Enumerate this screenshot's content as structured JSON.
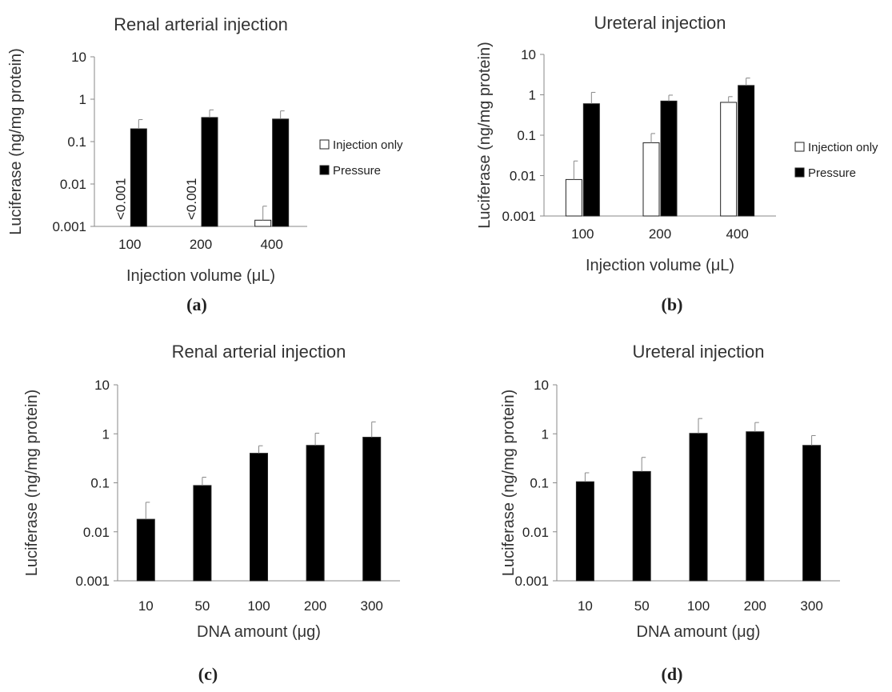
{
  "chart_data": [
    {
      "id": "a",
      "type": "bar",
      "title": "Renal arterial injection",
      "xlabel": "Injection volume (μL)",
      "ylabel": "Luciferase (ng/mg protein)",
      "yscale": "log",
      "ylim": [
        0.001,
        10
      ],
      "yticks": [
        "0.001",
        "0.01",
        "0.1",
        "1",
        "10"
      ],
      "categories": [
        "100",
        "200",
        "400"
      ],
      "series": [
        {
          "name": "Injection only",
          "color": "#ffffff",
          "values": [
            null,
            null,
            0.0014
          ],
          "errors": [
            null,
            null,
            0.003
          ],
          "notes": [
            "<0.001",
            "<0.001",
            ""
          ]
        },
        {
          "name": "Pressure",
          "color": "#000000",
          "values": [
            0.2,
            0.37,
            0.34
          ],
          "errors": [
            0.33,
            0.56,
            0.53
          ]
        }
      ],
      "legend": "right",
      "caption": "(a)"
    },
    {
      "id": "b",
      "type": "bar",
      "title": "Ureteral injection",
      "xlabel": "Injection volume (μL)",
      "ylabel": "Luciferase (ng/mg protein)",
      "yscale": "log",
      "ylim": [
        0.001,
        10
      ],
      "yticks": [
        "0.001",
        "0.01",
        "0.1",
        "1",
        "10"
      ],
      "categories": [
        "100",
        "200",
        "400"
      ],
      "series": [
        {
          "name": "Injection only",
          "color": "#ffffff",
          "values": [
            0.008,
            0.065,
            0.65
          ],
          "errors": [
            0.023,
            0.11,
            0.9
          ]
        },
        {
          "name": "Pressure",
          "color": "#000000",
          "values": [
            0.6,
            0.7,
            1.7
          ],
          "errors": [
            1.15,
            0.98,
            2.6
          ]
        }
      ],
      "legend": "right",
      "caption": "(b)"
    },
    {
      "id": "c",
      "type": "bar",
      "title": "Renal arterial injection",
      "xlabel": "DNA amount (μg)",
      "ylabel": "Luciferase (ng/mg protein)",
      "yscale": "log",
      "ylim": [
        0.001,
        10
      ],
      "yticks": [
        "0.001",
        "0.01",
        "0.1",
        "1",
        "10"
      ],
      "categories": [
        "10",
        "50",
        "100",
        "200",
        "300"
      ],
      "series": [
        {
          "name": "",
          "color": "#000000",
          "values": [
            0.018,
            0.088,
            0.4,
            0.58,
            0.85
          ],
          "errors": [
            0.04,
            0.13,
            0.57,
            1.03,
            1.75
          ]
        }
      ],
      "caption": "(c)"
    },
    {
      "id": "d",
      "type": "bar",
      "title": "Ureteral injection",
      "xlabel": "DNA amount (μg)",
      "ylabel": "Luciferase (ng/mg protein)",
      "yscale": "log",
      "ylim": [
        0.001,
        10
      ],
      "yticks": [
        "0.001",
        "0.01",
        "0.1",
        "1",
        "10"
      ],
      "categories": [
        "10",
        "50",
        "100",
        "200",
        "300"
      ],
      "series": [
        {
          "name": "",
          "color": "#000000",
          "values": [
            0.105,
            0.17,
            1.02,
            1.1,
            0.58
          ],
          "errors": [
            0.16,
            0.33,
            2.05,
            1.7,
            0.92
          ]
        }
      ],
      "caption": "(d)"
    }
  ]
}
